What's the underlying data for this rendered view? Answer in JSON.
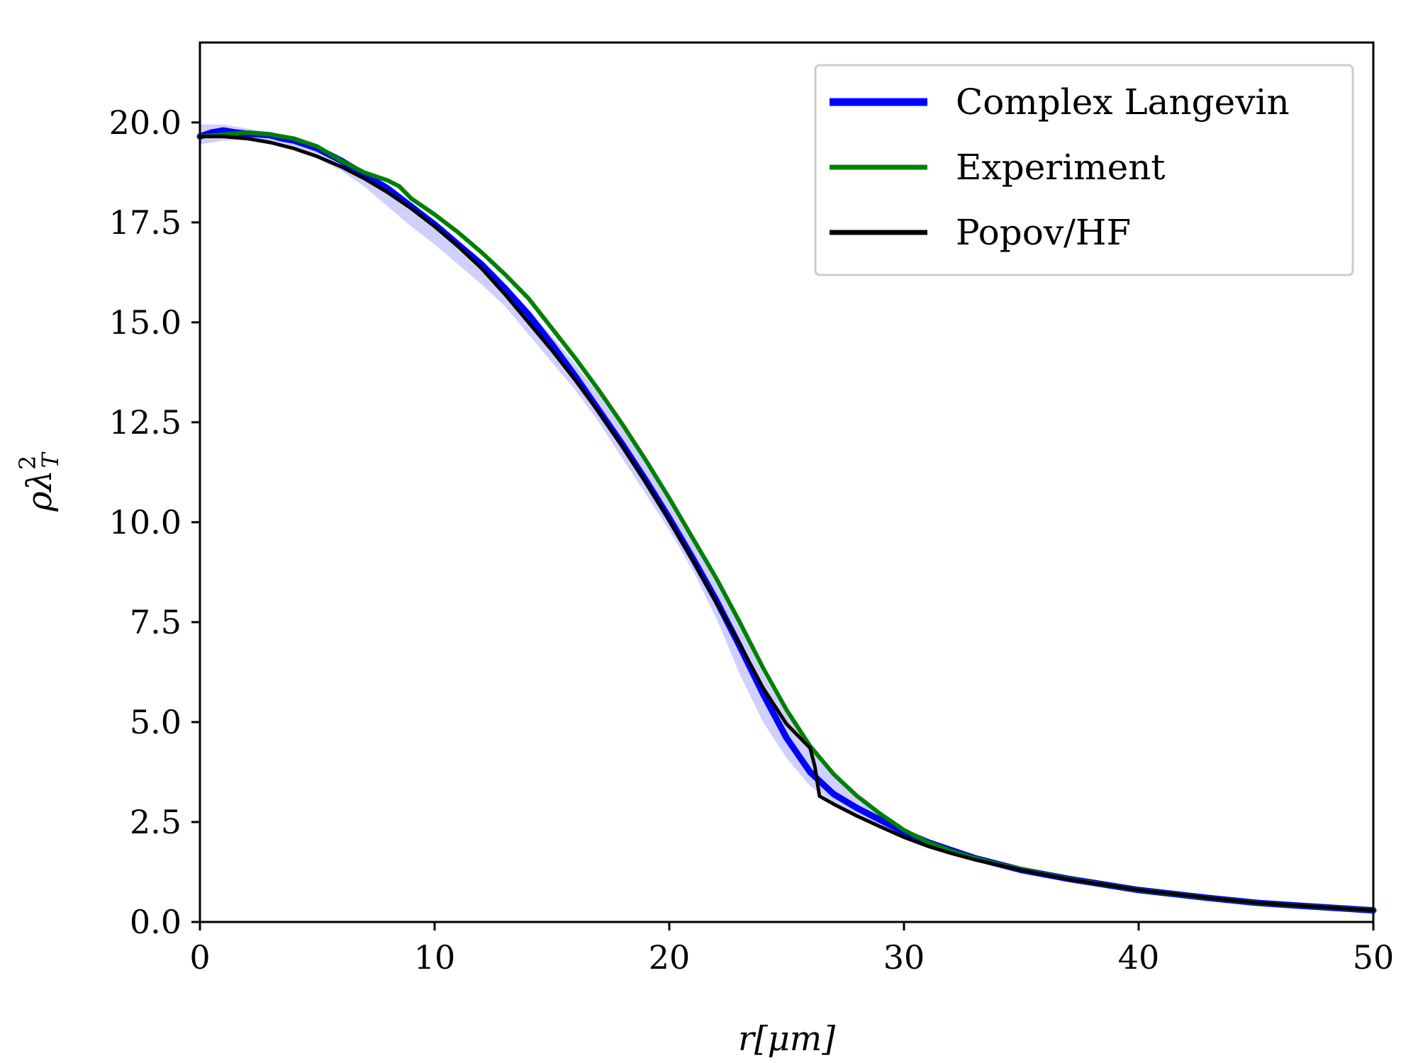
{
  "chart_data": {
    "type": "line",
    "xlabel": "r[μm]",
    "ylabel": "ρλ",
    "ylabel_sup": "2",
    "ylabel_sub": "T",
    "xlim": [
      0,
      50
    ],
    "ylim": [
      0,
      22
    ],
    "xticks": [
      0,
      10,
      20,
      30,
      40,
      50
    ],
    "yticks": [
      0.0,
      2.5,
      5.0,
      7.5,
      10.0,
      12.5,
      15.0,
      17.5,
      20.0
    ],
    "xtick_labels": [
      "0",
      "10",
      "20",
      "30",
      "40",
      "50"
    ],
    "ytick_labels": [
      "0.0",
      "2.5",
      "5.0",
      "7.5",
      "10.0",
      "12.5",
      "15.0",
      "17.5",
      "20.0"
    ],
    "grid": false,
    "legend_position": "top-right",
    "band": {
      "color": "#c8c8ff",
      "x": [
        0,
        1,
        2,
        3,
        4,
        5,
        6,
        7,
        8,
        9,
        10,
        11,
        12,
        13,
        14,
        15,
        16,
        17,
        18,
        19,
        20,
        21,
        22,
        23,
        24,
        25,
        26,
        27,
        28,
        29,
        30,
        31,
        32,
        33,
        35,
        40,
        45,
        50
      ],
      "lower": [
        19.45,
        19.55,
        19.55,
        19.45,
        19.35,
        19.1,
        18.8,
        18.4,
        17.9,
        17.4,
        16.95,
        16.45,
        15.95,
        15.4,
        14.7,
        14.0,
        13.3,
        12.5,
        11.6,
        10.7,
        9.8,
        8.8,
        7.6,
        6.2,
        5.0,
        4.1,
        3.4,
        3.0,
        2.7,
        2.4,
        2.1,
        1.9,
        1.7,
        1.55,
        1.25,
        0.8,
        0.5,
        0.3
      ],
      "upper": [
        19.95,
        19.95,
        19.85,
        19.75,
        19.55,
        19.3,
        19.0,
        18.65,
        18.25,
        17.85,
        17.45,
        16.95,
        16.45,
        15.95,
        15.3,
        14.65,
        13.95,
        13.2,
        12.35,
        11.45,
        10.6,
        9.7,
        8.6,
        7.4,
        6.2,
        5.2,
        4.4,
        3.7,
        3.1,
        2.65,
        2.3,
        2.0,
        1.8,
        1.6,
        1.3,
        0.85,
        0.55,
        0.32
      ]
    },
    "series": [
      {
        "name": "Complex Langevin",
        "color": "#0000ff",
        "x": [
          0,
          0.5,
          1,
          1.5,
          2,
          2.5,
          3,
          3.5,
          4,
          5,
          6,
          7,
          8,
          9,
          10,
          11,
          12,
          13,
          14,
          15,
          16,
          17,
          18,
          19,
          20,
          21,
          22,
          23,
          24,
          25,
          26,
          27,
          28,
          29,
          30,
          31,
          32,
          33,
          34,
          35,
          37,
          40,
          43,
          45,
          47,
          50
        ],
        "y": [
          19.65,
          19.75,
          19.8,
          19.75,
          19.72,
          19.7,
          19.68,
          19.6,
          19.55,
          19.35,
          19.05,
          18.7,
          18.35,
          17.9,
          17.45,
          16.95,
          16.45,
          15.85,
          15.2,
          14.45,
          13.65,
          12.8,
          11.95,
          11.05,
          10.1,
          9.1,
          8.05,
          6.9,
          5.7,
          4.6,
          3.75,
          3.2,
          2.85,
          2.55,
          2.25,
          2.0,
          1.8,
          1.6,
          1.45,
          1.3,
          1.08,
          0.8,
          0.6,
          0.48,
          0.4,
          0.29
        ]
      },
      {
        "name": "Experiment",
        "color": "#008000",
        "x": [
          0,
          1,
          2,
          3,
          4,
          5,
          6,
          7,
          8,
          8.5,
          9,
          10,
          11,
          12,
          13,
          14,
          15,
          16,
          17,
          18,
          19,
          20,
          21,
          22,
          23,
          24,
          25,
          26,
          27,
          28,
          29,
          30,
          31,
          32,
          33,
          34,
          35,
          37,
          40,
          43,
          45,
          47,
          50
        ],
        "y": [
          19.65,
          19.7,
          19.75,
          19.7,
          19.6,
          19.4,
          19.05,
          18.75,
          18.55,
          18.4,
          18.1,
          17.7,
          17.25,
          16.75,
          16.2,
          15.6,
          14.85,
          14.1,
          13.3,
          12.45,
          11.55,
          10.6,
          9.6,
          8.6,
          7.5,
          6.35,
          5.3,
          4.4,
          3.7,
          3.15,
          2.7,
          2.3,
          2.0,
          1.78,
          1.6,
          1.45,
          1.32,
          1.08,
          0.8,
          0.6,
          0.48,
          0.4,
          0.29
        ]
      },
      {
        "name": "Popov/HF",
        "color": "#000000",
        "x": [
          0,
          1,
          2,
          3,
          4,
          5,
          6,
          7,
          8,
          9,
          10,
          11,
          12,
          13,
          14,
          15,
          16,
          17,
          18,
          19,
          20,
          21,
          22,
          23,
          24,
          25,
          26,
          26.2,
          26.4,
          27,
          28,
          29,
          30,
          31,
          32,
          33,
          34,
          35,
          37,
          40,
          43,
          45,
          47,
          50
        ],
        "y": [
          19.65,
          19.65,
          19.6,
          19.5,
          19.35,
          19.15,
          18.9,
          18.6,
          18.25,
          17.85,
          17.4,
          16.9,
          16.35,
          15.7,
          15.0,
          14.3,
          13.55,
          12.75,
          11.9,
          11.0,
          10.05,
          9.05,
          8.0,
          6.95,
          5.85,
          4.95,
          4.35,
          3.9,
          3.15,
          2.95,
          2.65,
          2.38,
          2.12,
          1.9,
          1.72,
          1.56,
          1.43,
          1.3,
          1.07,
          0.8,
          0.6,
          0.48,
          0.4,
          0.29
        ]
      }
    ]
  }
}
